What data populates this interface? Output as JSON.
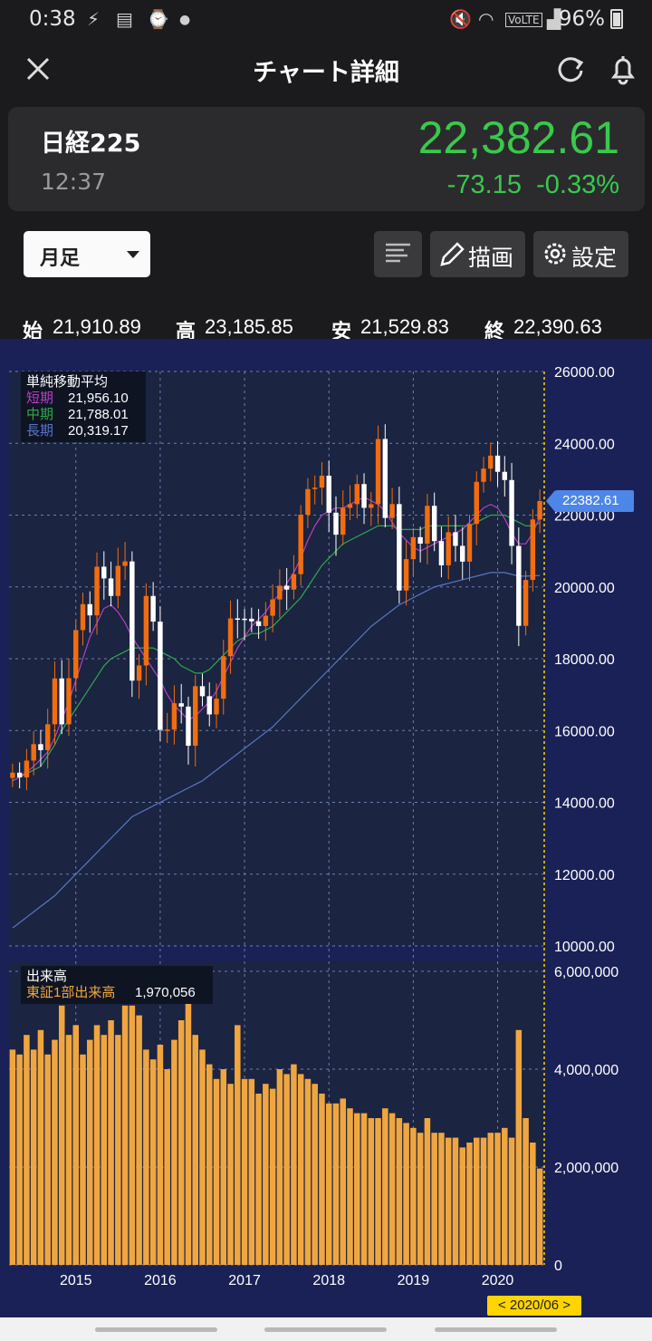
{
  "status_bar": {
    "time": "0:38",
    "battery": "96%"
  },
  "app_bar": {
    "title": "チャート詳細"
  },
  "quote": {
    "name": "日経225",
    "time": "12:37",
    "price": "22,382.61",
    "change": "-73.15",
    "change_pct": "-0.33%"
  },
  "toolbar": {
    "period": "月足",
    "draw_label": "描画",
    "settings_label": "設定"
  },
  "ohlc": {
    "open_label": "始",
    "open": "21,910.89",
    "high_label": "高",
    "high": "23,185.85",
    "low_label": "安",
    "low": "21,529.83",
    "close_label": "終",
    "close": "22,390.63"
  },
  "legend_ma": {
    "title": "単純移動平均",
    "short_label": "短期",
    "short_value": "21,956.10",
    "mid_label": "中期",
    "mid_value": "21,788.01",
    "long_label": "長期",
    "long_value": "20,319.17"
  },
  "legend_vol": {
    "title": "出来高",
    "series_label": "東証1部出来高",
    "value": "1,970,056"
  },
  "price_tag": "22382.61",
  "date_marker": "< 2020/06 >",
  "colors": {
    "up": "#f26d0f",
    "down": "#ffffff",
    "short": "#b640c8",
    "mid": "#2ea84c",
    "long": "#5876c8",
    "volume": "#f0a640",
    "bg": "#1a2156"
  },
  "chart_data": {
    "type": "candlestick",
    "price_axis_ticks": [
      "26000.00",
      "24000.00",
      "22000.00",
      "20000.00",
      "18000.00",
      "16000.00",
      "14000.00",
      "12000.00",
      "10000.00"
    ],
    "volume_axis_ticks": [
      "6,000,000",
      "4,000,000",
      "2,000,000",
      "0"
    ],
    "x_ticks": [
      "2015",
      "2016",
      "2017",
      "2018",
      "2019",
      "2020"
    ],
    "ylim": [
      10000,
      26000
    ],
    "volume_ylim": [
      0,
      6000000
    ],
    "ohlc_closes": [
      14827,
      14695,
      15162,
      15620,
      15454,
      16174,
      17451,
      16173,
      17459,
      18798,
      19520,
      19207,
      20563,
      20236,
      19748,
      20586,
      20710,
      17389,
      17812,
      19748,
      19034,
      16017,
      16027,
      16759,
      16667,
      15576,
      17235,
      16956,
      16449,
      16887,
      18069,
      19123,
      19115,
      19114,
      19041,
      18910,
      19197,
      19651,
      20033,
      19926,
      20356,
      22012,
      22725,
      22765,
      23098,
      22068,
      21454,
      22202,
      22305,
      22865,
      22202,
      22305,
      24120,
      21920,
      22307,
      19900,
      20773,
      21385,
      21206,
      22259,
      21276,
      20601,
      21523,
      21143,
      20704,
      21756,
      22927,
      23294,
      23657,
      23205,
      22977,
      21143,
      18917,
      20194,
      21878,
      22390
    ],
    "ma_short": [
      14600,
      14700,
      14850,
      15000,
      15200,
      15400,
      15800,
      16300,
      16800,
      17400,
      18000,
      18600,
      19000,
      19400,
      19500,
      19300,
      19000,
      18600,
      18300,
      18000,
      17700,
      17400,
      17000,
      16700,
      16500,
      16300,
      16400,
      16600,
      16800,
      17100,
      17500,
      17900,
      18300,
      18600,
      18900,
      19100,
      19300,
      19600,
      19800,
      20100,
      20400,
      20800,
      21300,
      21700,
      22000,
      22100,
      22200,
      22200,
      22300,
      22400,
      22500,
      22400,
      22300,
      22100,
      21800,
      21500,
      21300,
      21100,
      21000,
      21100,
      21200,
      21300,
      21400,
      21500,
      21600,
      21800,
      22000,
      22200,
      22300,
      22200,
      21900,
      21500,
      21200,
      21200,
      21500,
      21956
    ],
    "ma_mid": [
      14600,
      14700,
      14800,
      14900,
      15000,
      15300,
      15600,
      16000,
      16300,
      16600,
      16900,
      17200,
      17500,
      17800,
      18000,
      18100,
      18200,
      18300,
      18300,
      18300,
      18300,
      18200,
      18100,
      18000,
      17800,
      17700,
      17600,
      17600,
      17700,
      17900,
      18100,
      18300,
      18500,
      18600,
      18700,
      18700,
      18800,
      18900,
      19100,
      19300,
      19500,
      19700,
      20000,
      20300,
      20600,
      20800,
      21000,
      21200,
      21300,
      21400,
      21500,
      21600,
      21700,
      21700,
      21700,
      21600,
      21600,
      21600,
      21600,
      21700,
      21700,
      21700,
      21700,
      21700,
      21700,
      21700,
      21800,
      21900,
      22000,
      22000,
      22000,
      21900,
      21800,
      21700,
      21700,
      21788
    ],
    "ma_long": [
      10500,
      10650,
      10800,
      10950,
      11100,
      11250,
      11400,
      11600,
      11800,
      12000,
      12200,
      12400,
      12600,
      12800,
      13000,
      13200,
      13400,
      13600,
      13700,
      13800,
      13900,
      14000,
      14100,
      14200,
      14300,
      14400,
      14500,
      14600,
      14750,
      14900,
      15050,
      15200,
      15350,
      15500,
      15650,
      15800,
      15950,
      16100,
      16300,
      16500,
      16700,
      16900,
      17100,
      17300,
      17500,
      17700,
      17900,
      18100,
      18300,
      18500,
      18700,
      18900,
      19050,
      19200,
      19350,
      19500,
      19600,
      19700,
      19800,
      19900,
      20000,
      20050,
      20100,
      20150,
      20200,
      20250,
      20300,
      20350,
      20400,
      20400,
      20400,
      20350,
      20300,
      20300,
      20310,
      20319
    ],
    "volumes": [
      4400000,
      4300000,
      4700000,
      4400000,
      4800000,
      4300000,
      4600000,
      5300000,
      4700000,
      4900000,
      4300000,
      4600000,
      4900000,
      4700000,
      5000000,
      4700000,
      5300000,
      5300000,
      5100000,
      4400000,
      4200000,
      4500000,
      4000000,
      4600000,
      5000000,
      5700000,
      4700000,
      4400000,
      4100000,
      3800000,
      4000000,
      3700000,
      4900000,
      3800000,
      3800000,
      3500000,
      3700000,
      3600000,
      4000000,
      3900000,
      4100000,
      3900000,
      3800000,
      3700000,
      3500000,
      3300000,
      3300000,
      3400000,
      3200000,
      3100000,
      3100000,
      3000000,
      3000000,
      3200000,
      3100000,
      3000000,
      2900000,
      2800000,
      2700000,
      3000000,
      2700000,
      2700000,
      2600000,
      2600000,
      2400000,
      2500000,
      2600000,
      2600000,
      2700000,
      2700000,
      2800000,
      2600000,
      4800000,
      3000000,
      2500000,
      1970056
    ]
  }
}
